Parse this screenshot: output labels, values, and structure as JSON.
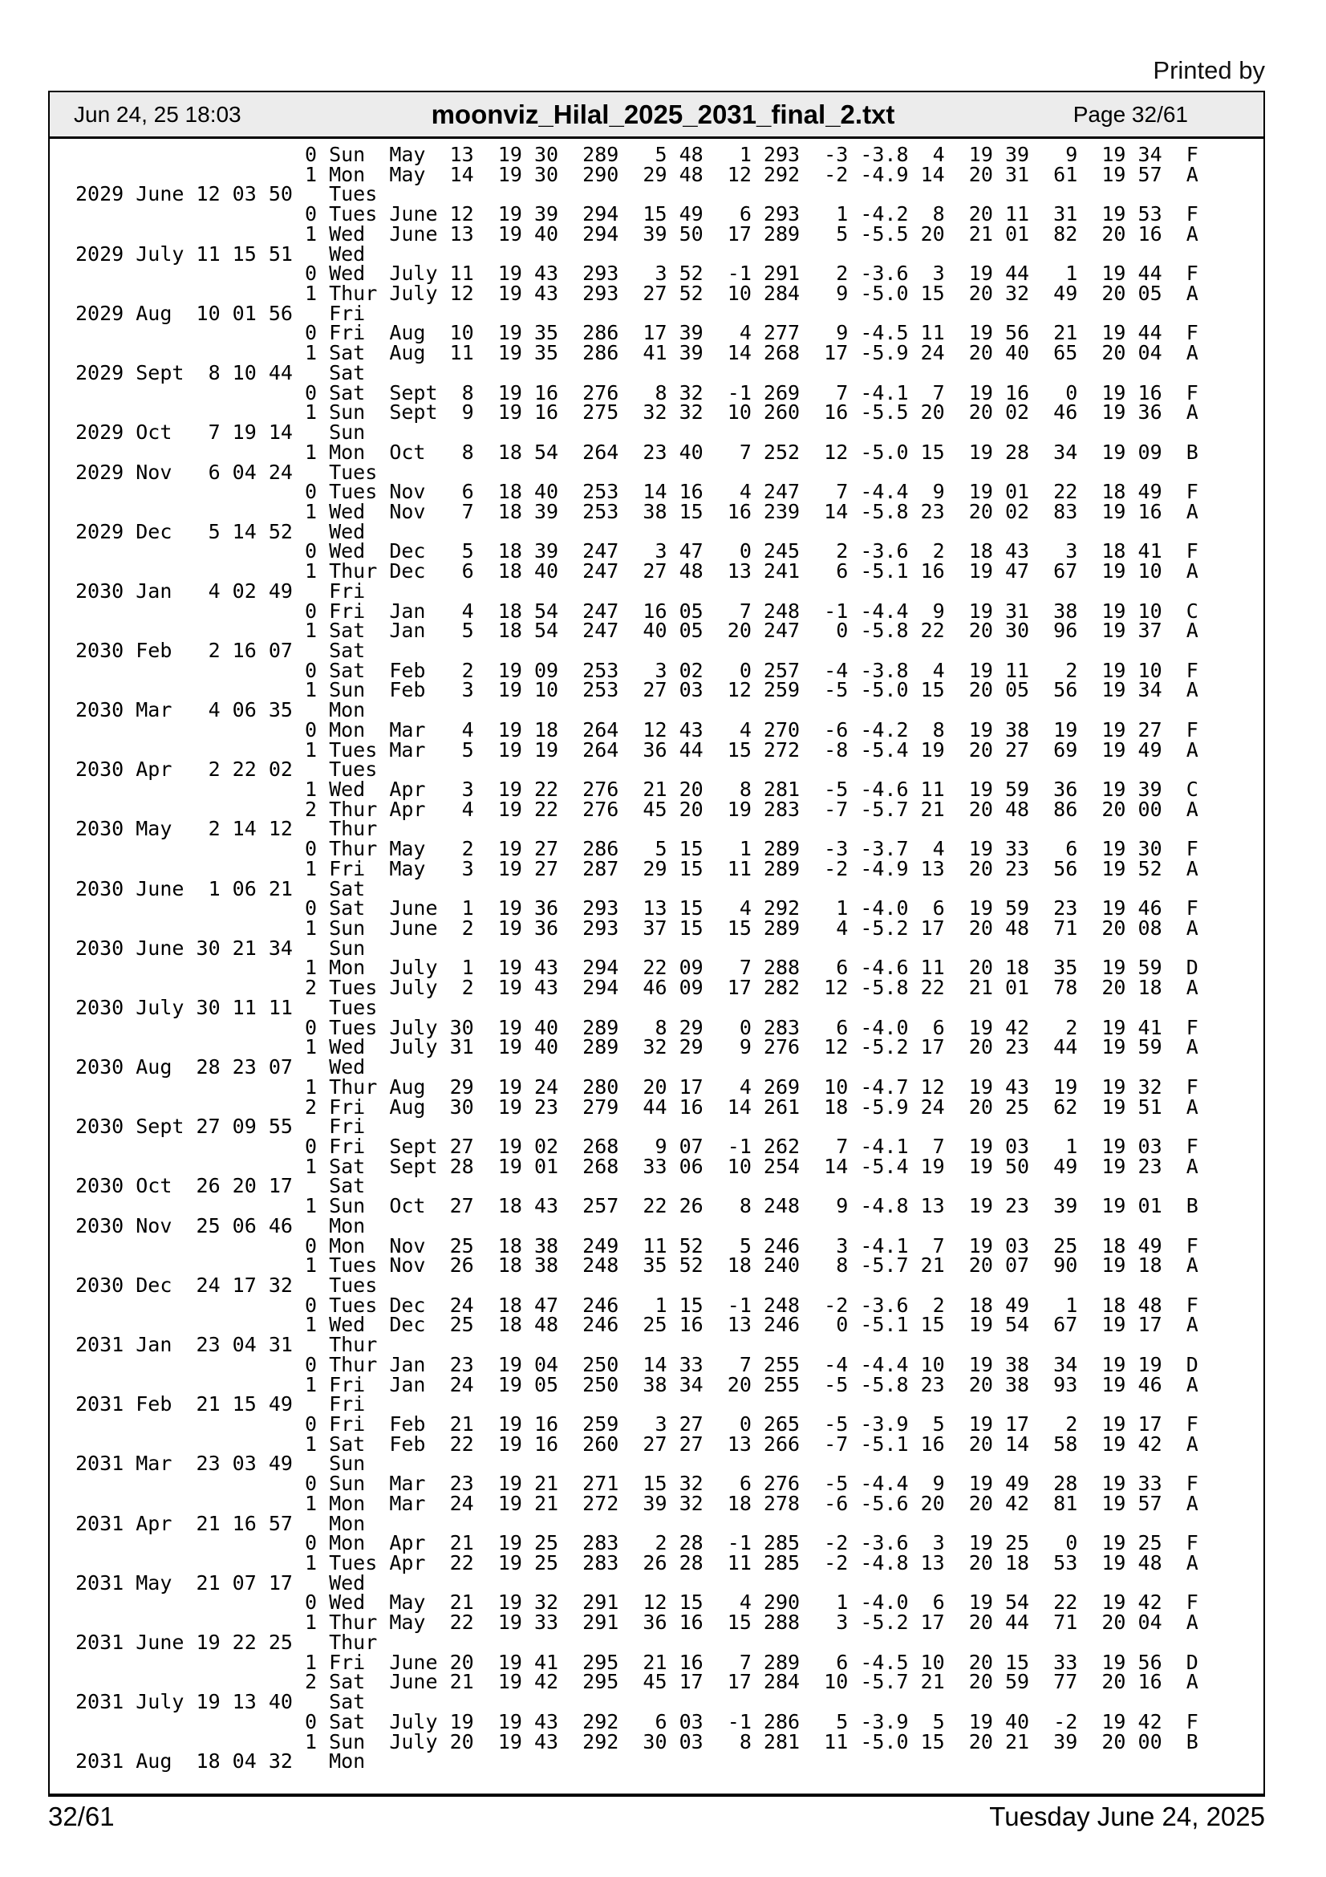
{
  "print_header": {
    "printed_by": "Printed by"
  },
  "header": {
    "datetime": "Jun 24, 25 18:03",
    "filename": "moonviz_Hilal_2025_2031_final_2.txt",
    "page": "Page 32/61"
  },
  "footer": {
    "page": "32/61",
    "date": "Tuesday June 24, 2025"
  },
  "document": {
    "lines": [
      "                   0 Sun  May  13  19 30  289   5 48   1 293  -3 -3.8  4  19 39   9  19 34  F",
      "                   1 Mon  May  14  19 30  290  29 48  12 292  -2 -4.9 14  20 31  61  19 57  A",
      "2029 June 12 03 50   Tues",
      "                   0 Tues June 12  19 39  294  15 49   6 293   1 -4.2  8  20 11  31  19 53  F",
      "                   1 Wed  June 13  19 40  294  39 50  17 289   5 -5.5 20  21 01  82  20 16  A",
      "2029 July 11 15 51   Wed",
      "                   0 Wed  July 11  19 43  293   3 52  -1 291   2 -3.6  3  19 44   1  19 44  F",
      "                   1 Thur July 12  19 43  293  27 52  10 284   9 -5.0 15  20 32  49  20 05  A",
      "2029 Aug  10 01 56   Fri",
      "                   0 Fri  Aug  10  19 35  286  17 39   4 277   9 -4.5 11  19 56  21  19 44  F",
      "                   1 Sat  Aug  11  19 35  286  41 39  14 268  17 -5.9 24  20 40  65  20 04  A",
      "2029 Sept  8 10 44   Sat",
      "                   0 Sat  Sept  8  19 16  276   8 32  -1 269   7 -4.1  7  19 16   0  19 16  F",
      "                   1 Sun  Sept  9  19 16  275  32 32  10 260  16 -5.5 20  20 02  46  19 36  A",
      "2029 Oct   7 19 14   Sun",
      "                   1 Mon  Oct   8  18 54  264  23 40   7 252  12 -5.0 15  19 28  34  19 09  B",
      "2029 Nov   6 04 24   Tues",
      "                   0 Tues Nov   6  18 40  253  14 16   4 247   7 -4.4  9  19 01  22  18 49  F",
      "                   1 Wed  Nov   7  18 39  253  38 15  16 239  14 -5.8 23  20 02  83  19 16  A",
      "2029 Dec   5 14 52   Wed",
      "                   0 Wed  Dec   5  18 39  247   3 47   0 245   2 -3.6  2  18 43   3  18 41  F",
      "                   1 Thur Dec   6  18 40  247  27 48  13 241   6 -5.1 16  19 47  67  19 10  A",
      "2030 Jan   4 02 49   Fri",
      "                   0 Fri  Jan   4  18 54  247  16 05   7 248  -1 -4.4  9  19 31  38  19 10  C",
      "                   1 Sat  Jan   5  18 54  247  40 05  20 247   0 -5.8 22  20 30  96  19 37  A",
      "2030 Feb   2 16 07   Sat",
      "                   0 Sat  Feb   2  19 09  253   3 02   0 257  -4 -3.8  4  19 11   2  19 10  F",
      "                   1 Sun  Feb   3  19 10  253  27 03  12 259  -5 -5.0 15  20 05  56  19 34  A",
      "2030 Mar   4 06 35   Mon",
      "                   0 Mon  Mar   4  19 18  264  12 43   4 270  -6 -4.2  8  19 38  19  19 27  F",
      "                   1 Tues Mar   5  19 19  264  36 44  15 272  -8 -5.4 19  20 27  69  19 49  A",
      "2030 Apr   2 22 02   Tues",
      "                   1 Wed  Apr   3  19 22  276  21 20   8 281  -5 -4.6 11  19 59  36  19 39  C",
      "                   2 Thur Apr   4  19 22  276  45 20  19 283  -7 -5.7 21  20 48  86  20 00  A",
      "2030 May   2 14 12   Thur",
      "                   0 Thur May   2  19 27  286   5 15   1 289  -3 -3.7  4  19 33   6  19 30  F",
      "                   1 Fri  May   3  19 27  287  29 15  11 289  -2 -4.9 13  20 23  56  19 52  A",
      "2030 June  1 06 21   Sat",
      "                   0 Sat  June  1  19 36  293  13 15   4 292   1 -4.0  6  19 59  23  19 46  F",
      "                   1 Sun  June  2  19 36  293  37 15  15 289   4 -5.2 17  20 48  71  20 08  A",
      "2030 June 30 21 34   Sun",
      "                   1 Mon  July  1  19 43  294  22 09   7 288   6 -4.6 11  20 18  35  19 59  D",
      "                   2 Tues July  2  19 43  294  46 09  17 282  12 -5.8 22  21 01  78  20 18  A",
      "2030 July 30 11 11   Tues",
      "                   0 Tues July 30  19 40  289   8 29   0 283   6 -4.0  6  19 42   2  19 41  F",
      "                   1 Wed  July 31  19 40  289  32 29   9 276  12 -5.2 17  20 23  44  19 59  A",
      "2030 Aug  28 23 07   Wed",
      "                   1 Thur Aug  29  19 24  280  20 17   4 269  10 -4.7 12  19 43  19  19 32  F",
      "                   2 Fri  Aug  30  19 23  279  44 16  14 261  18 -5.9 24  20 25  62  19 51  A",
      "2030 Sept 27 09 55   Fri",
      "                   0 Fri  Sept 27  19 02  268   9 07  -1 262   7 -4.1  7  19 03   1  19 03  F",
      "                   1 Sat  Sept 28  19 01  268  33 06  10 254  14 -5.4 19  19 50  49  19 23  A",
      "2030 Oct  26 20 17   Sat",
      "                   1 Sun  Oct  27  18 43  257  22 26   8 248   9 -4.8 13  19 23  39  19 01  B",
      "2030 Nov  25 06 46   Mon",
      "                   0 Mon  Nov  25  18 38  249  11 52   5 246   3 -4.1  7  19 03  25  18 49  F",
      "                   1 Tues Nov  26  18 38  248  35 52  18 240   8 -5.7 21  20 07  90  19 18  A",
      "2030 Dec  24 17 32   Tues",
      "                   0 Tues Dec  24  18 47  246   1 15  -1 248  -2 -3.6  2  18 49   1  18 48  F",
      "                   1 Wed  Dec  25  18 48  246  25 16  13 246   0 -5.1 15  19 54  67  19 17  A",
      "2031 Jan  23 04 31   Thur",
      "                   0 Thur Jan  23  19 04  250  14 33   7 255  -4 -4.4 10  19 38  34  19 19  D",
      "                   1 Fri  Jan  24  19 05  250  38 34  20 255  -5 -5.8 23  20 38  93  19 46  A",
      "2031 Feb  21 15 49   Fri",
      "                   0 Fri  Feb  21  19 16  259   3 27   0 265  -5 -3.9  5  19 17   2  19 17  F",
      "                   1 Sat  Feb  22  19 16  260  27 27  13 266  -7 -5.1 16  20 14  58  19 42  A",
      "2031 Mar  23 03 49   Sun",
      "                   0 Sun  Mar  23  19 21  271  15 32   6 276  -5 -4.4  9  19 49  28  19 33  F",
      "                   1 Mon  Mar  24  19 21  272  39 32  18 278  -6 -5.6 20  20 42  81  19 57  A",
      "2031 Apr  21 16 57   Mon",
      "                   0 Mon  Apr  21  19 25  283   2 28  -1 285  -2 -3.6  3  19 25   0  19 25  F",
      "                   1 Tues Apr  22  19 25  283  26 28  11 285  -2 -4.8 13  20 18  53  19 48  A",
      "2031 May  21 07 17   Wed",
      "                   0 Wed  May  21  19 32  291  12 15   4 290   1 -4.0  6  19 54  22  19 42  F",
      "                   1 Thur May  22  19 33  291  36 16  15 288   3 -5.2 17  20 44  71  20 04  A",
      "2031 June 19 22 25   Thur",
      "                   1 Fri  June 20  19 41  295  21 16   7 289   6 -4.5 10  20 15  33  19 56  D",
      "                   2 Sat  June 21  19 42  295  45 17  17 284  10 -5.7 21  20 59  77  20 16  A",
      "2031 July 19 13 40   Sat",
      "                   0 Sat  July 19  19 43  292   6 03  -1 286   5 -3.9  5  19 40  -2  19 42  F",
      "                   1 Sun  July 20  19 43  292  30 03   8 281  11 -5.0 15  20 21  39  20 00  B",
      "2031 Aug  18 04 32   Mon"
    ]
  }
}
